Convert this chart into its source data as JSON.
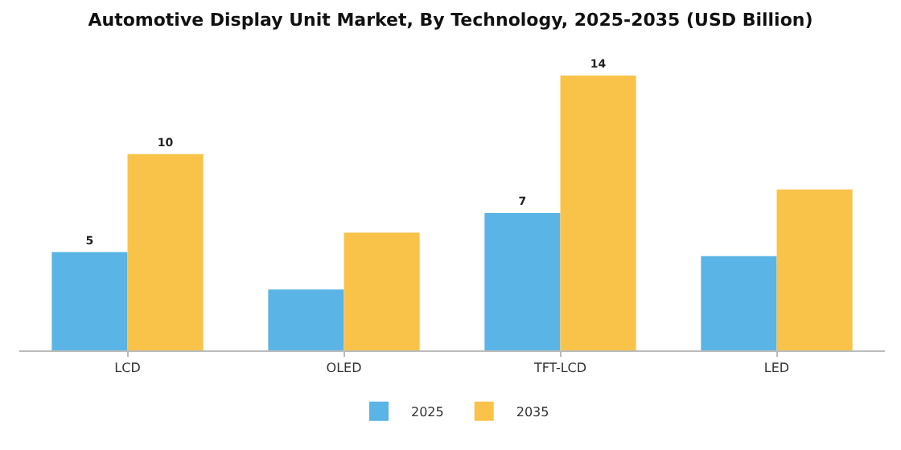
{
  "chart_data": {
    "type": "bar",
    "title": "Automotive Display Unit Market, By Technology, 2025-2035 (USD Billion)",
    "categories": [
      "LCD",
      "OLED",
      "TFT-LCD",
      "LED"
    ],
    "series": [
      {
        "name": "2025",
        "color": "#5ab4e5",
        "values": [
          5,
          3.1,
          7,
          4.8
        ],
        "value_labels": [
          "5",
          null,
          "7",
          null
        ]
      },
      {
        "name": "2035",
        "color": "#f9c34a",
        "values": [
          10,
          6,
          14,
          8.2
        ],
        "value_labels": [
          "10",
          null,
          "14",
          null
        ]
      }
    ],
    "tick_labels": "x",
    "grid": false,
    "legend": "bottom"
  }
}
